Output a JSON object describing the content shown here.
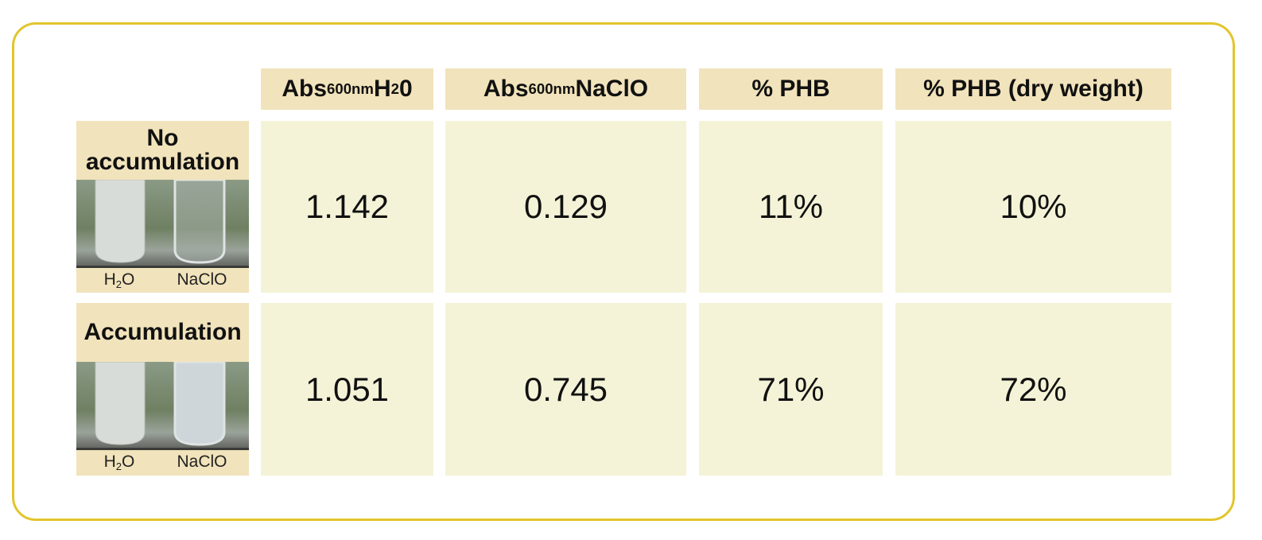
{
  "table": {
    "headers": [
      [
        "Abs",
        "600nm",
        " H",
        "2",
        "0"
      ],
      [
        "Abs",
        "600nm",
        " NaClO"
      ],
      [
        "% PHB"
      ],
      [
        "% PHB (dry weight)"
      ]
    ],
    "rows": [
      {
        "label": "No accumulation",
        "captions": [
          [
            "H",
            "2",
            "O"
          ],
          [
            "NaClO"
          ]
        ],
        "cells": [
          "1.142",
          "0.129",
          "11%",
          "10%"
        ]
      },
      {
        "label": "Accumulation",
        "captions": [
          [
            "H",
            "2",
            "O"
          ],
          [
            "NaClO"
          ]
        ],
        "cells": [
          "1.051",
          "0.745",
          "71%",
          "72%"
        ]
      }
    ]
  }
}
